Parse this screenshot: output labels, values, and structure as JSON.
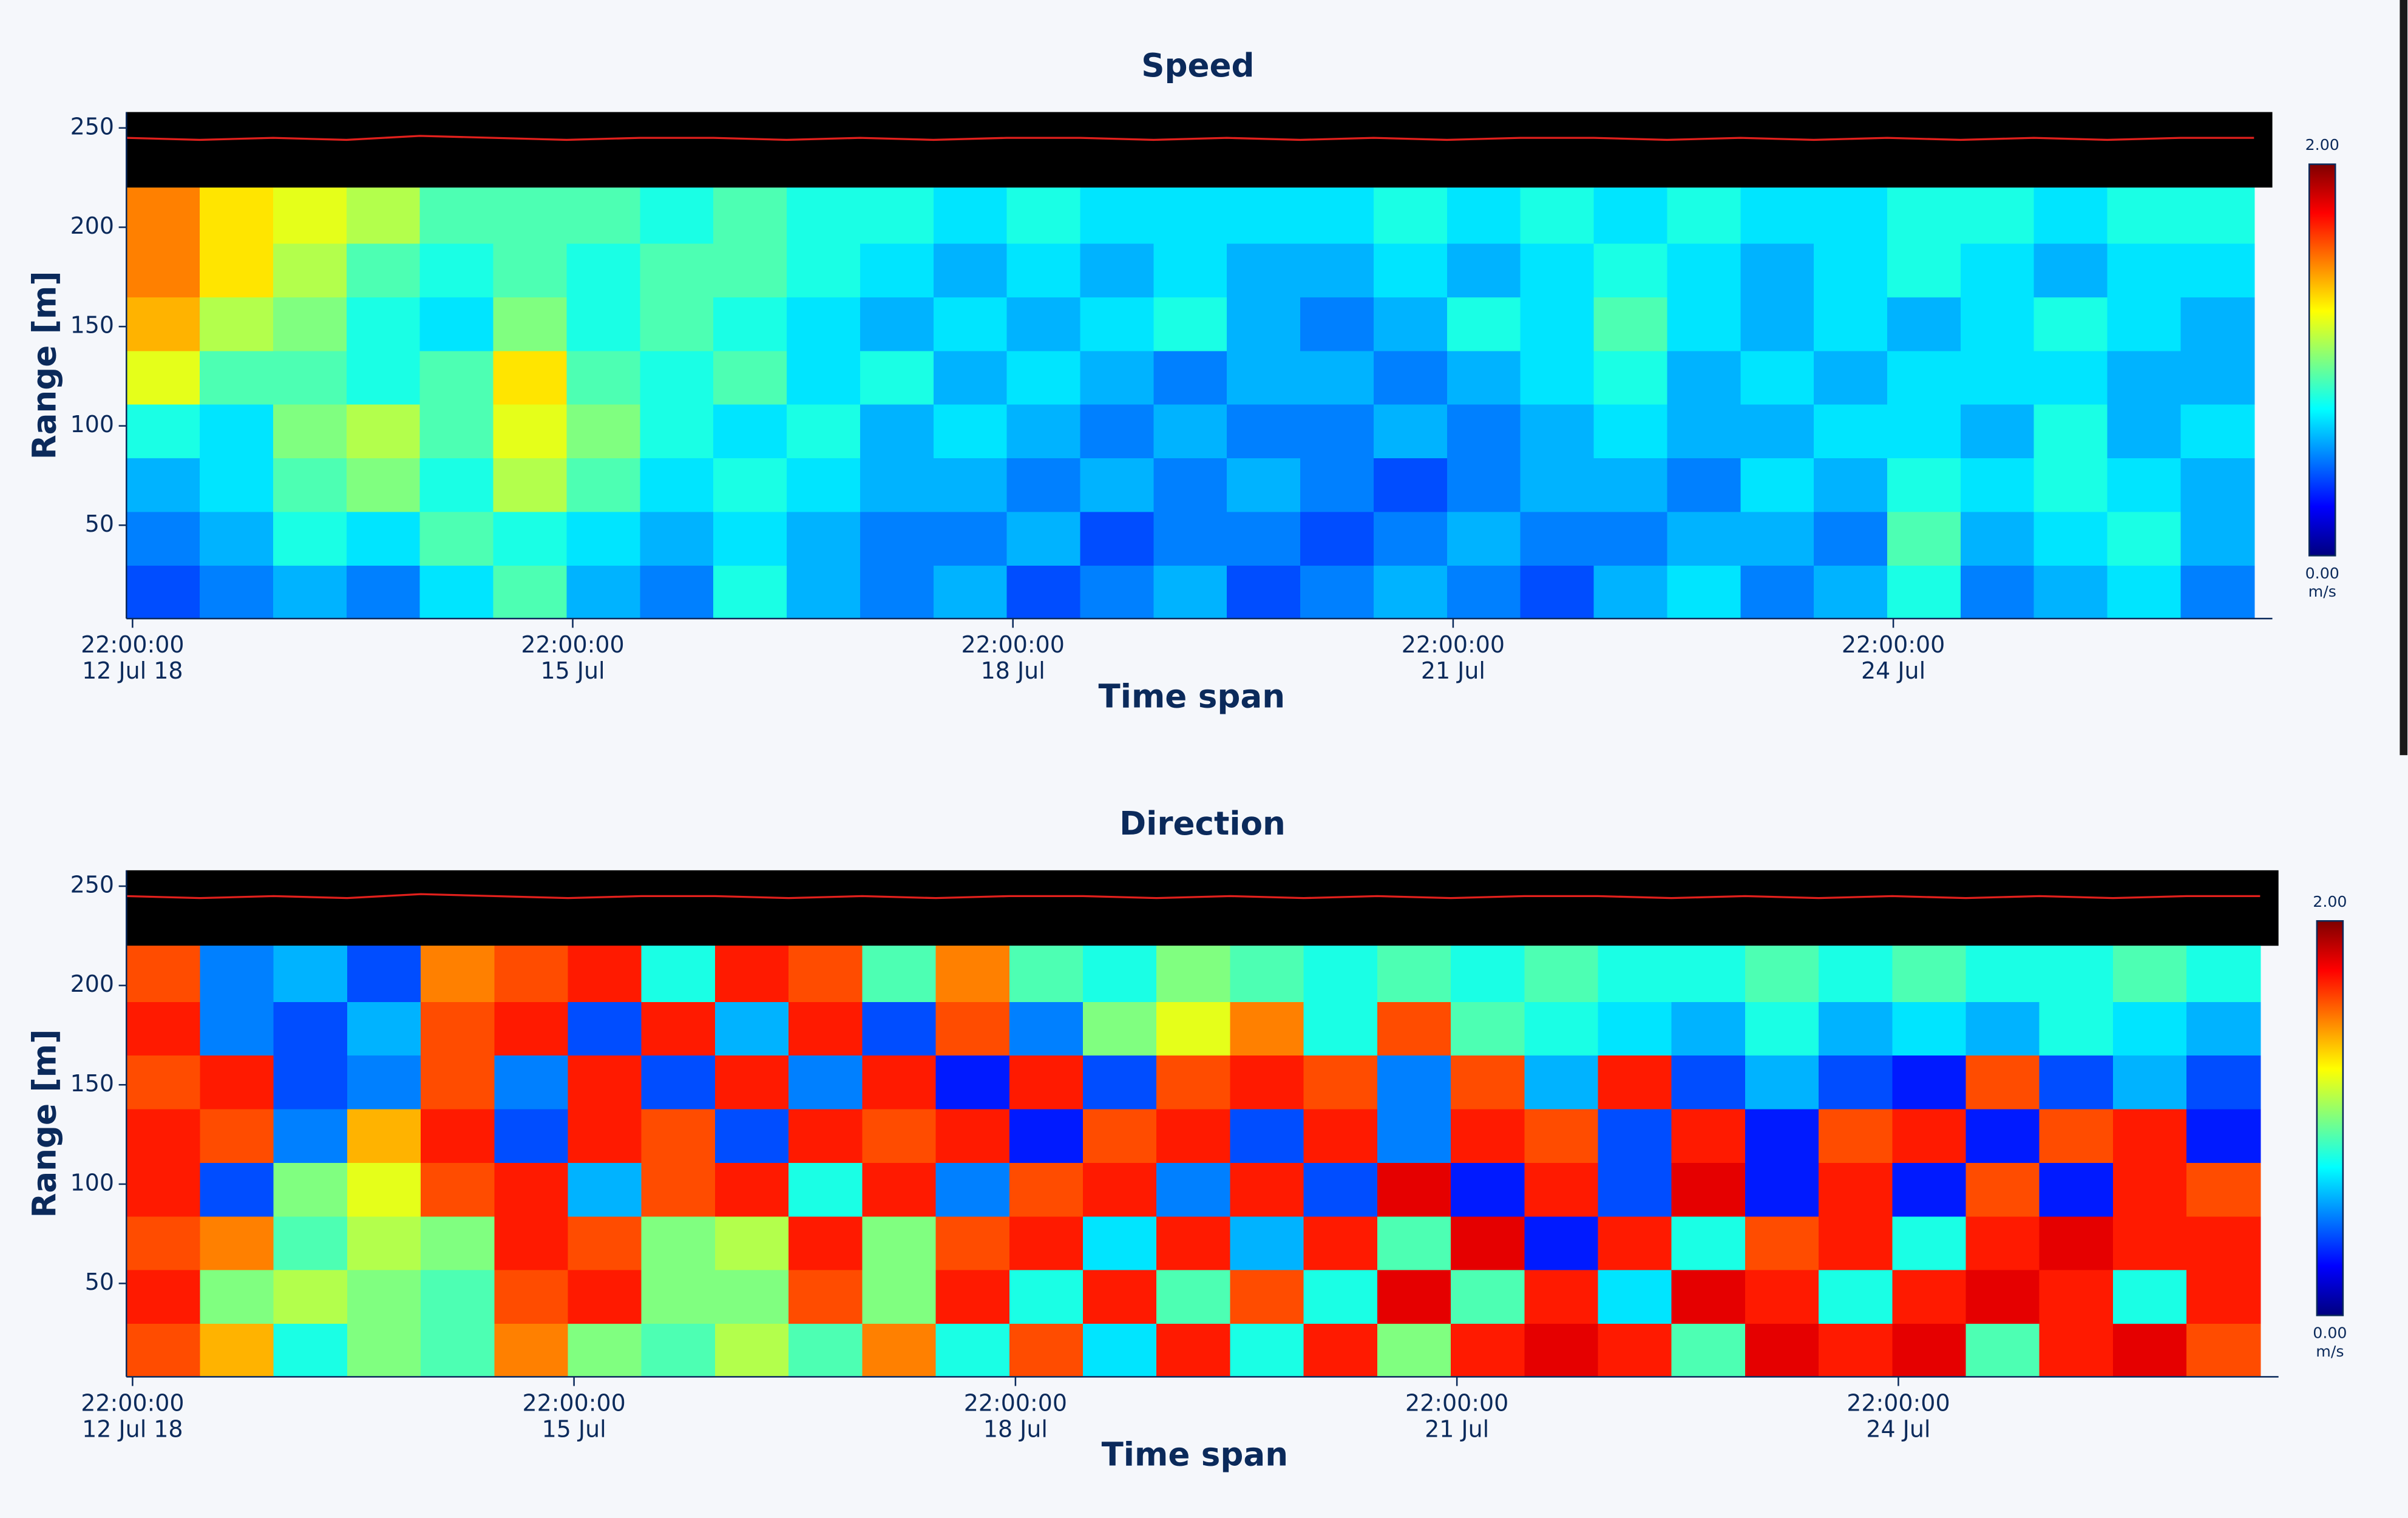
{
  "chart_data": [
    {
      "type": "heatmap",
      "title": "Speed",
      "x_label": "Time span",
      "y_label": "Range [m]",
      "xlim": [
        "2018-07-12T21:00",
        "2018-07-27T12:00"
      ],
      "xticks": [
        {
          "value": "2018-07-12T22:00",
          "label": [
            "22:00:00",
            "12 Jul 18"
          ]
        },
        {
          "value": "2018-07-15T22:00",
          "label": [
            "22:00:00",
            "15 Jul"
          ]
        },
        {
          "value": "2018-07-18T22:00",
          "label": [
            "22:00:00",
            "18 Jul"
          ]
        },
        {
          "value": "2018-07-21T22:00",
          "label": [
            "22:00:00",
            "21 Jul"
          ]
        },
        {
          "value": "2018-07-24T22:00",
          "label": [
            "22:00:00",
            "24 Jul"
          ]
        }
      ],
      "ylim": [
        3,
        258
      ],
      "yticks": [
        50,
        100,
        150,
        200,
        250
      ],
      "x_bins": [
        "2018-07-12T21:00",
        "2018-07-13T09:00",
        "2018-07-13T21:00",
        "2018-07-14T09:00",
        "2018-07-14T21:00",
        "2018-07-15T09:00",
        "2018-07-15T21:00",
        "2018-07-16T09:00",
        "2018-07-16T21:00",
        "2018-07-17T09:00",
        "2018-07-17T21:00",
        "2018-07-18T09:00",
        "2018-07-18T21:00",
        "2018-07-19T09:00",
        "2018-07-19T21:00",
        "2018-07-20T09:00",
        "2018-07-20T21:00",
        "2018-07-21T09:00",
        "2018-07-21T21:00",
        "2018-07-22T09:00",
        "2018-07-22T21:00",
        "2018-07-23T09:00",
        "2018-07-23T21:00",
        "2018-07-24T09:00",
        "2018-07-24T21:00",
        "2018-07-25T09:00",
        "2018-07-25T21:00",
        "2018-07-26T09:00",
        "2018-07-26T21:00",
        "2018-07-27T09:00"
      ],
      "y_bins": [
        3,
        30,
        57,
        84,
        111,
        138,
        165,
        192,
        220
      ],
      "colormap": "jet",
      "clim": [
        0,
        2
      ],
      "colorbar_ticks": [
        {
          "value": 2,
          "label": "2.00"
        },
        {
          "value": 0,
          "label": "0.00"
        }
      ],
      "colorbar_label": "m/s",
      "no_data_color": "#000000",
      "values": [
        [
          0.4,
          0.5,
          0.6,
          0.5,
          0.7,
          0.9,
          0.6,
          0.5,
          0.8,
          0.6,
          0.5,
          0.6,
          0.4,
          0.5,
          0.6,
          0.4,
          0.5,
          0.6,
          0.5,
          0.4,
          0.6,
          0.7,
          0.5,
          0.6,
          0.8,
          0.5,
          0.6,
          0.7,
          0.5
        ],
        [
          0.5,
          0.6,
          0.8,
          0.7,
          0.9,
          0.8,
          0.7,
          0.6,
          0.7,
          0.6,
          0.5,
          0.5,
          0.6,
          0.4,
          0.5,
          0.5,
          0.4,
          0.5,
          0.6,
          0.5,
          0.5,
          0.6,
          0.6,
          0.5,
          0.9,
          0.6,
          0.7,
          0.8,
          0.6
        ],
        [
          0.6,
          0.7,
          0.9,
          1.0,
          0.8,
          1.1,
          0.9,
          0.7,
          0.8,
          0.7,
          0.6,
          0.6,
          0.5,
          0.6,
          0.5,
          0.6,
          0.5,
          0.4,
          0.5,
          0.6,
          0.6,
          0.5,
          0.7,
          0.6,
          0.8,
          0.7,
          0.8,
          0.7,
          0.6
        ],
        [
          0.8,
          0.7,
          1.0,
          1.1,
          0.9,
          1.2,
          1.0,
          0.8,
          0.7,
          0.8,
          0.6,
          0.7,
          0.6,
          0.5,
          0.6,
          0.5,
          0.5,
          0.6,
          0.5,
          0.6,
          0.7,
          0.6,
          0.6,
          0.7,
          0.7,
          0.6,
          0.8,
          0.6,
          0.7
        ],
        [
          1.2,
          0.9,
          0.9,
          0.8,
          0.9,
          1.3,
          0.9,
          0.8,
          0.9,
          0.7,
          0.8,
          0.6,
          0.7,
          0.6,
          0.5,
          0.6,
          0.6,
          0.5,
          0.6,
          0.7,
          0.8,
          0.6,
          0.7,
          0.6,
          0.7,
          0.7,
          0.7,
          0.6,
          0.6
        ],
        [
          1.4,
          1.1,
          1.0,
          0.8,
          0.7,
          1.0,
          0.8,
          0.9,
          0.8,
          0.7,
          0.6,
          0.7,
          0.6,
          0.7,
          0.8,
          0.6,
          0.5,
          0.6,
          0.8,
          0.7,
          0.9,
          0.7,
          0.6,
          0.7,
          0.6,
          0.7,
          0.8,
          0.7,
          0.6
        ],
        [
          1.5,
          1.3,
          1.1,
          0.9,
          0.8,
          0.9,
          0.8,
          0.9,
          0.9,
          0.8,
          0.7,
          0.6,
          0.7,
          0.6,
          0.7,
          0.6,
          0.6,
          0.7,
          0.6,
          0.7,
          0.8,
          0.7,
          0.6,
          0.7,
          0.8,
          0.7,
          0.6,
          0.7,
          0.7
        ],
        [
          1.5,
          1.3,
          1.2,
          1.1,
          0.9,
          0.9,
          0.9,
          0.8,
          0.9,
          0.8,
          0.8,
          0.7,
          0.8,
          0.7,
          0.7,
          0.7,
          0.7,
          0.8,
          0.7,
          0.8,
          0.7,
          0.8,
          0.7,
          0.7,
          0.8,
          0.8,
          0.7,
          0.8,
          0.8
        ]
      ],
      "surface": {
        "color": "#e0201c",
        "values": [
          245,
          244,
          245,
          244,
          246,
          245,
          244,
          245,
          245,
          244,
          245,
          244,
          245,
          245,
          244,
          245,
          244,
          245,
          244,
          245,
          245,
          244,
          245,
          244,
          245,
          244,
          245,
          244,
          245,
          245
        ]
      }
    },
    {
      "type": "heatmap",
      "title": "Direction",
      "x_label": "Time span",
      "y_label": "Range [m]",
      "xlim": [
        "2018-07-12T21:00",
        "2018-07-27T12:00"
      ],
      "xticks": [
        {
          "value": "2018-07-12T22:00",
          "label": [
            "22:00:00",
            "12 Jul 18"
          ]
        },
        {
          "value": "2018-07-15T22:00",
          "label": [
            "22:00:00",
            "15 Jul"
          ]
        },
        {
          "value": "2018-07-18T22:00",
          "label": [
            "22:00:00",
            "18 Jul"
          ]
        },
        {
          "value": "2018-07-21T22:00",
          "label": [
            "22:00:00",
            "21 Jul"
          ]
        },
        {
          "value": "2018-07-24T22:00",
          "label": [
            "22:00:00",
            "24 Jul"
          ]
        }
      ],
      "ylim": [
        3,
        258
      ],
      "yticks": [
        50,
        100,
        150,
        200,
        250
      ],
      "x_bins": [
        "2018-07-12T21:00",
        "2018-07-13T09:00",
        "2018-07-13T21:00",
        "2018-07-14T09:00",
        "2018-07-14T21:00",
        "2018-07-15T09:00",
        "2018-07-15T21:00",
        "2018-07-16T09:00",
        "2018-07-16T21:00",
        "2018-07-17T09:00",
        "2018-07-17T21:00",
        "2018-07-18T09:00",
        "2018-07-18T21:00",
        "2018-07-19T09:00",
        "2018-07-19T21:00",
        "2018-07-20T09:00",
        "2018-07-20T21:00",
        "2018-07-21T09:00",
        "2018-07-21T21:00",
        "2018-07-22T09:00",
        "2018-07-22T21:00",
        "2018-07-23T09:00",
        "2018-07-23T21:00",
        "2018-07-24T09:00",
        "2018-07-24T21:00",
        "2018-07-25T09:00",
        "2018-07-25T21:00",
        "2018-07-26T09:00",
        "2018-07-26T21:00",
        "2018-07-27T09:00"
      ],
      "y_bins": [
        3,
        30,
        57,
        84,
        111,
        138,
        165,
        192,
        220
      ],
      "colormap": "jet",
      "clim": [
        0,
        2
      ],
      "colorbar_ticks": [
        {
          "value": 2,
          "label": "2.00"
        },
        {
          "value": 0,
          "label": "0.00"
        }
      ],
      "colorbar_label": "m/s",
      "no_data_color": "#000000",
      "values": [
        [
          1.6,
          1.4,
          0.8,
          1.0,
          0.9,
          1.5,
          1.0,
          0.9,
          1.1,
          0.9,
          1.5,
          0.8,
          1.6,
          0.7,
          1.7,
          0.8,
          1.7,
          1.0,
          1.7,
          1.8,
          1.7,
          0.9,
          1.8,
          1.7,
          1.8,
          0.9,
          1.7,
          1.8,
          1.6
        ],
        [
          1.7,
          1.0,
          1.1,
          1.0,
          0.9,
          1.6,
          1.7,
          1.0,
          1.0,
          1.6,
          1.0,
          1.7,
          0.8,
          1.7,
          0.9,
          1.6,
          0.8,
          1.8,
          0.9,
          1.7,
          0.7,
          1.8,
          1.7,
          0.8,
          1.7,
          1.8,
          1.7,
          0.8,
          1.7
        ],
        [
          1.6,
          1.5,
          0.9,
          1.1,
          1.0,
          1.7,
          1.6,
          1.0,
          1.1,
          1.7,
          1.0,
          1.6,
          1.7,
          0.7,
          1.7,
          0.6,
          1.7,
          0.9,
          1.8,
          0.3,
          1.7,
          0.8,
          1.6,
          1.7,
          0.8,
          1.7,
          1.8,
          1.7,
          1.7
        ],
        [
          1.7,
          0.4,
          1.0,
          1.2,
          1.6,
          1.7,
          0.6,
          1.6,
          1.7,
          0.8,
          1.7,
          0.5,
          1.6,
          1.7,
          0.5,
          1.7,
          0.4,
          1.8,
          0.3,
          1.7,
          0.4,
          1.8,
          0.3,
          1.7,
          0.3,
          1.6,
          0.3,
          1.7,
          1.6
        ],
        [
          1.7,
          1.6,
          0.5,
          1.4,
          1.7,
          0.4,
          1.7,
          1.6,
          0.4,
          1.7,
          1.6,
          1.7,
          0.3,
          1.6,
          1.7,
          0.4,
          1.7,
          0.5,
          1.7,
          1.6,
          0.4,
          1.7,
          0.3,
          1.6,
          1.7,
          0.3,
          1.6,
          1.7,
          0.3
        ],
        [
          1.6,
          1.7,
          0.4,
          0.5,
          1.6,
          0.5,
          1.7,
          0.4,
          1.7,
          0.5,
          1.7,
          0.3,
          1.7,
          0.4,
          1.6,
          1.7,
          1.6,
          0.5,
          1.6,
          0.6,
          1.7,
          0.4,
          0.6,
          0.4,
          0.3,
          1.6,
          0.4,
          0.6,
          0.4
        ],
        [
          1.7,
          0.5,
          0.4,
          0.6,
          1.6,
          1.7,
          0.4,
          1.7,
          0.6,
          1.7,
          0.4,
          1.6,
          0.5,
          1.0,
          1.2,
          1.5,
          0.8,
          1.6,
          0.9,
          0.8,
          0.7,
          0.6,
          0.8,
          0.6,
          0.7,
          0.6,
          0.8,
          0.7,
          0.6
        ],
        [
          1.6,
          0.5,
          0.6,
          0.4,
          1.5,
          1.6,
          1.7,
          0.8,
          1.7,
          1.6,
          0.9,
          1.5,
          0.9,
          0.8,
          1.0,
          0.9,
          0.8,
          0.9,
          0.8,
          0.9,
          0.8,
          0.8,
          0.9,
          0.8,
          0.9,
          0.8,
          0.8,
          0.9,
          0.8
        ]
      ],
      "surface": {
        "color": "#e0201c",
        "values": [
          245,
          244,
          245,
          244,
          246,
          245,
          244,
          245,
          245,
          244,
          245,
          244,
          245,
          245,
          244,
          245,
          244,
          245,
          244,
          245,
          245,
          244,
          245,
          244,
          245,
          244,
          245,
          244,
          245,
          245
        ]
      }
    }
  ]
}
